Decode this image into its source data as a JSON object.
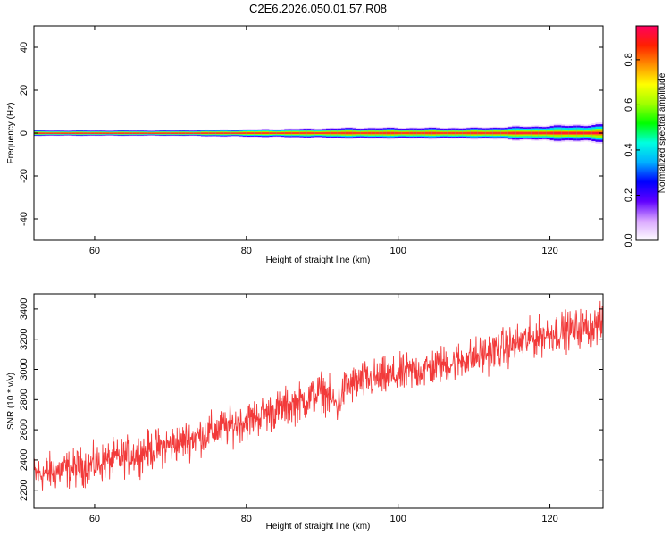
{
  "title": "C2E6.2026.050.01.57.R08",
  "chart_data": [
    {
      "type": "heatmap",
      "name": "spectrogram",
      "xlabel": "Height of straight line (km)",
      "ylabel": "Frequency (Hz)",
      "xlim": [
        52,
        127
      ],
      "ylim": [
        -50,
        50
      ],
      "xticks": [
        60,
        80,
        100,
        120
      ],
      "yticks": [
        -40,
        -20,
        0,
        20,
        40
      ],
      "colorbar": {
        "label": "Normalized spectral amplitude",
        "range": [
          0.0,
          0.95
        ],
        "ticks": [
          0.0,
          0.2,
          0.4,
          0.6,
          0.8
        ]
      },
      "band": {
        "center_hz": 0,
        "halfwidth_hz": [
          [
            52,
            1.5
          ],
          [
            70,
            1.5
          ],
          [
            88,
            2.5
          ],
          [
            94,
            3.0
          ],
          [
            110,
            3.0
          ],
          [
            127,
            5.0
          ]
        ],
        "peak_amplitude": 0.95
      }
    },
    {
      "type": "line",
      "name": "snr",
      "xlabel": "Height of straight line (km)",
      "ylabel": "SNR (10 * v/v)",
      "xlim": [
        52,
        127
      ],
      "ylim": [
        2080,
        3500
      ],
      "xticks": [
        60,
        80,
        100,
        120
      ],
      "yticks": [
        2200,
        2400,
        2600,
        2800,
        3000,
        3200,
        3400
      ],
      "line_color": "#f23a3a",
      "trend": {
        "x": [
          52,
          60,
          70,
          80,
          88,
          90,
          92,
          93,
          95,
          100,
          110,
          120,
          127
        ],
        "y": [
          2300,
          2370,
          2500,
          2660,
          2800,
          2860,
          2760,
          2880,
          2920,
          2960,
          3080,
          3240,
          3300
        ]
      },
      "noise_amplitude": 90
    }
  ],
  "colors": {
    "colormap": [
      "#ffffff",
      "#d9a6ff",
      "#6000ff",
      "#0000ff",
      "#00b0ff",
      "#00ffe0",
      "#00ff00",
      "#a0ff00",
      "#ffff00",
      "#ff9000",
      "#ff2000",
      "#ff0060"
    ]
  }
}
